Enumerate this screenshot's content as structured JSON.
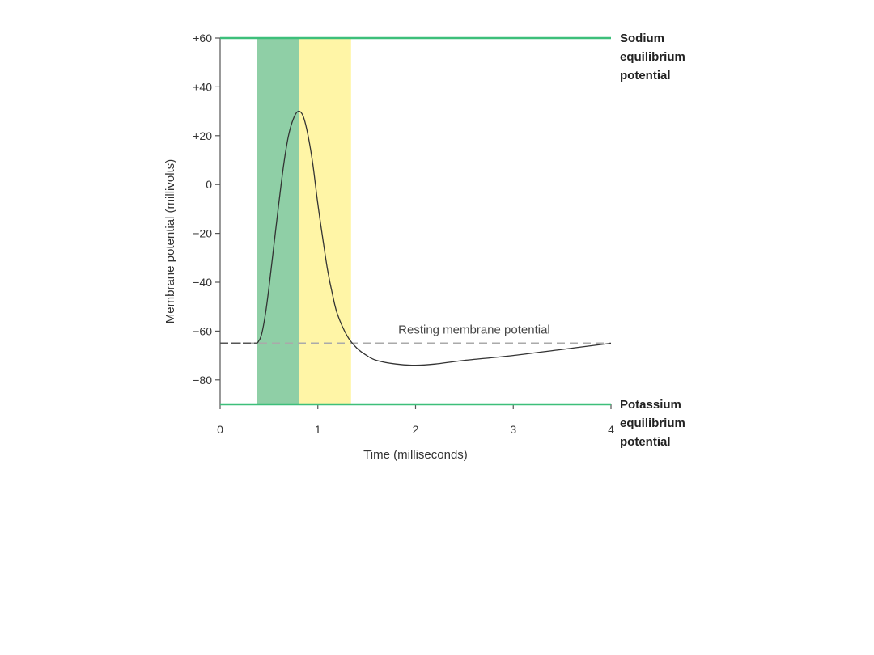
{
  "chart_data": {
    "type": "line",
    "title": "",
    "xlabel": "Time (milliseconds)",
    "ylabel": "Membrane potential (millivolts)",
    "xlim": [
      0,
      4
    ],
    "ylim": [
      -90,
      60
    ],
    "x_ticks": [
      0,
      1,
      2,
      3,
      4
    ],
    "x_tick_labels": [
      "0",
      "1",
      "2",
      "3",
      "4"
    ],
    "y_ticks": [
      60,
      40,
      20,
      0,
      -20,
      -40,
      -60,
      -80
    ],
    "y_tick_labels": [
      "+60",
      "+40",
      "+20",
      "0",
      "−20",
      "−40",
      "−60",
      "−80"
    ],
    "grid": false,
    "series": [
      {
        "values": [
          [
            0.38,
            -65
          ],
          [
            0.42,
            -62
          ],
          [
            0.46,
            -54
          ],
          [
            0.5,
            -42
          ],
          [
            0.55,
            -25
          ],
          [
            0.6,
            -8
          ],
          [
            0.65,
            8
          ],
          [
            0.7,
            20
          ],
          [
            0.75,
            27
          ],
          [
            0.8,
            30
          ],
          [
            0.85,
            28
          ],
          [
            0.9,
            20
          ],
          [
            0.95,
            8
          ],
          [
            1.0,
            -8
          ],
          [
            1.05,
            -22
          ],
          [
            1.1,
            -35
          ],
          [
            1.15,
            -45
          ],
          [
            1.2,
            -53
          ],
          [
            1.3,
            -62
          ],
          [
            1.4,
            -67
          ],
          [
            1.5,
            -70
          ],
          [
            1.6,
            -72
          ],
          [
            1.8,
            -73.5
          ],
          [
            2.0,
            -74
          ],
          [
            2.2,
            -73.5
          ],
          [
            2.5,
            -72
          ],
          [
            3.0,
            -70
          ],
          [
            3.5,
            -67.5
          ],
          [
            4.0,
            -65
          ]
        ],
        "color": "#333333"
      }
    ],
    "reference_lines": [
      {
        "value": 60,
        "label": "Sodium equilibrium potential",
        "label_lines": [
          "Sodium",
          "equilibrium",
          "potential"
        ],
        "color": "#3dbf7a"
      },
      {
        "value": -90,
        "label": "Potassium equilibrium potential",
        "label_lines": [
          "Potassium",
          "equilibrium",
          "potential"
        ],
        "color": "#3dbf7a"
      },
      {
        "value": -65,
        "label": "Resting membrane potential",
        "color": "#aaaaaa",
        "dashed": true
      }
    ],
    "shaded_regions": [
      {
        "x_start": 0.38,
        "x_end": 0.81,
        "color": "#8fcfa6"
      },
      {
        "x_start": 0.81,
        "x_end": 1.34,
        "color": "#fff5a6"
      }
    ]
  }
}
